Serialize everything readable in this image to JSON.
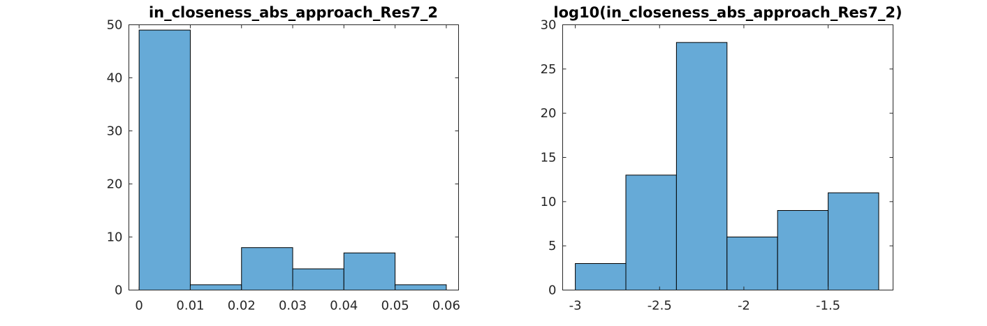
{
  "chart_data": [
    {
      "type": "bar",
      "title": "in_closeness_abs_approach_Res7_2",
      "bin_edges": [
        0,
        0.01,
        0.02,
        0.03,
        0.04,
        0.05,
        0.06
      ],
      "values": [
        49,
        1,
        8,
        4,
        7,
        1
      ],
      "xlim": [
        -0.002,
        0.0624
      ],
      "ylim": [
        0,
        50
      ],
      "xticks": [
        0,
        0.01,
        0.02,
        0.03,
        0.04,
        0.05,
        0.06
      ],
      "xtick_labels": [
        "0",
        "0.01",
        "0.02",
        "0.03",
        "0.04",
        "0.05",
        "0.06"
      ],
      "yticks": [
        0,
        10,
        20,
        30,
        40,
        50
      ],
      "ytick_labels": [
        "0",
        "10",
        "20",
        "30",
        "40",
        "50"
      ],
      "xlabel": "",
      "ylabel": "",
      "bar_color": "#66aad7",
      "grid": false
    },
    {
      "type": "bar",
      "title": "log10(in_closeness_abs_approach_Res7_2)",
      "bin_edges": [
        -3.0,
        -2.7,
        -2.4,
        -2.1,
        -1.8,
        -1.5,
        -1.2
      ],
      "values": [
        3,
        13,
        28,
        6,
        9,
        11
      ],
      "xlim": [
        -3.075,
        -1.115
      ],
      "ylim": [
        0,
        30
      ],
      "xticks": [
        -3,
        -2.5,
        -2,
        -1.5
      ],
      "xtick_labels": [
        "-3",
        "-2.5",
        "-2",
        "-1.5"
      ],
      "yticks": [
        0,
        5,
        10,
        15,
        20,
        25,
        30
      ],
      "ytick_labels": [
        "0",
        "5",
        "10",
        "15",
        "20",
        "25",
        "30"
      ],
      "xlabel": "",
      "ylabel": "",
      "bar_color": "#66aad7",
      "grid": false
    }
  ]
}
